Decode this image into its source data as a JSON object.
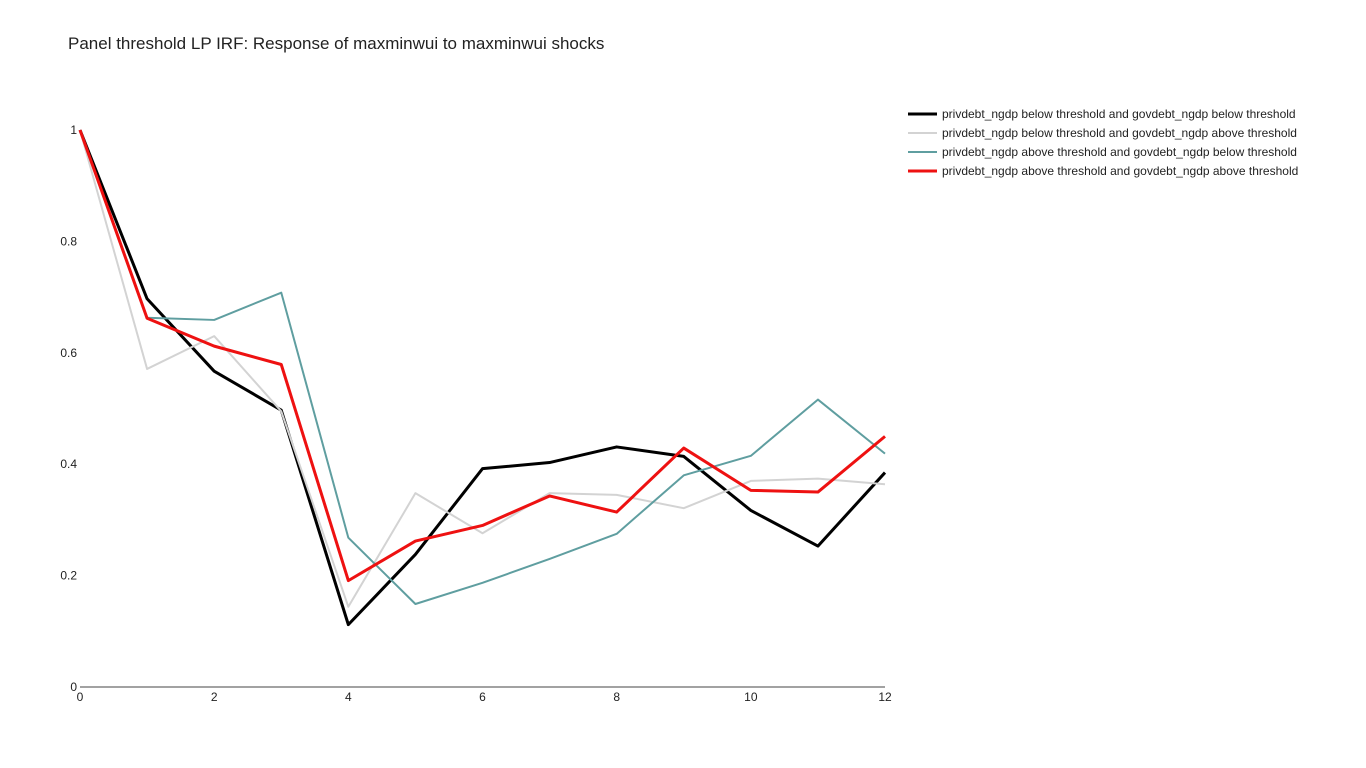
{
  "chart_data": {
    "type": "line",
    "title": "Panel threshold LP IRF: Response of maxminwui to maxminwui shocks",
    "xlabel": "",
    "ylabel": "",
    "xlim": [
      0,
      12
    ],
    "ylim": [
      0,
      1
    ],
    "x": [
      0,
      1,
      2,
      3,
      4,
      5,
      6,
      7,
      8,
      9,
      10,
      11,
      12
    ],
    "xticks": [
      "0",
      "2",
      "4",
      "6",
      "8",
      "10",
      "12"
    ],
    "yticks": [
      "0",
      "0.2",
      "0.4",
      "0.6",
      "0.8",
      "1"
    ],
    "grid": false,
    "legend_position": "top-right",
    "series": [
      {
        "name": "privdebt_ngdp below threshold and govdebt_ngdp below threshold",
        "color": "#000000",
        "values": [
          1.0,
          0.697,
          0.567,
          0.497,
          0.112,
          0.238,
          0.392,
          0.403,
          0.431,
          0.414,
          0.317,
          0.253,
          0.385
        ]
      },
      {
        "name": "privdebt_ngdp below threshold and govdebt_ngdp above threshold",
        "color": "#d3d3d3",
        "values": [
          1.0,
          0.571,
          0.63,
          0.495,
          0.144,
          0.348,
          0.276,
          0.348,
          0.345,
          0.321,
          0.37,
          0.374,
          0.364
        ]
      },
      {
        "name": "privdebt_ngdp above threshold and govdebt_ngdp below threshold",
        "color": "#5f9ea0",
        "values": [
          1.0,
          0.663,
          0.659,
          0.708,
          0.268,
          0.149,
          0.187,
          0.23,
          0.275,
          0.38,
          0.415,
          0.516,
          0.419
        ]
      },
      {
        "name": "privdebt_ngdp above threshold and govdebt_ngdp above threshold",
        "color": "#ee1111",
        "values": [
          1.0,
          0.662,
          0.612,
          0.579,
          0.191,
          0.262,
          0.29,
          0.343,
          0.314,
          0.429,
          0.353,
          0.35,
          0.45
        ]
      }
    ]
  }
}
